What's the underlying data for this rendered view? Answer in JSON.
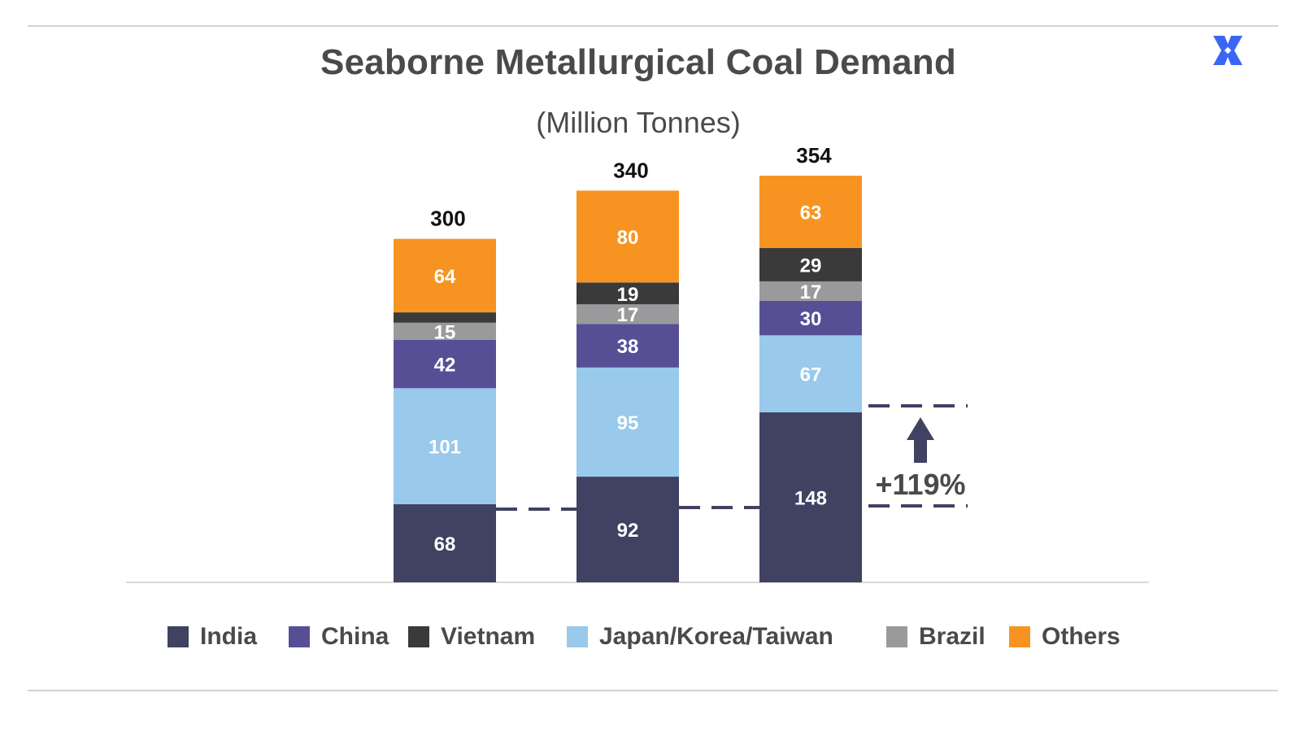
{
  "chart_data": {
    "type": "bar",
    "stacked": true,
    "title": "Seaborne Metallurgical Coal Demand",
    "subtitle": "(Million Tonnes)",
    "categories": [
      "",
      "",
      ""
    ],
    "series": [
      {
        "name": "India",
        "color": "#3f4261",
        "values": [
          68,
          92,
          148
        ]
      },
      {
        "name": "Japan/Korea/Taiwan",
        "color": "#99c9eb",
        "values": [
          101,
          95,
          67
        ]
      },
      {
        "name": "China",
        "color": "#574f96",
        "values": [
          42,
          38,
          30
        ]
      },
      {
        "name": "Brazil",
        "color": "#9a9a9c",
        "values": [
          15,
          17,
          17
        ]
      },
      {
        "name": "Vietnam",
        "color": "#3a3a3a",
        "values": [
          9,
          19,
          29
        ]
      },
      {
        "name": "Others",
        "color": "#f79421",
        "values": [
          64,
          80,
          63
        ]
      }
    ],
    "segment_labels": [
      [
        "68",
        "92",
        "148"
      ],
      [
        "101",
        "95",
        "67"
      ],
      [
        "42",
        "38",
        "30"
      ],
      [
        "15",
        "17",
        "17"
      ],
      [
        "",
        "19",
        "29"
      ],
      [
        "64",
        "80",
        "63"
      ]
    ],
    "totals": [
      "300",
      "340",
      "354"
    ],
    "ylim": [
      0,
      354
    ],
    "grid": false,
    "legend_position": "bottom",
    "legend_order": [
      "India",
      "China",
      "Vietnam",
      "Japan/Korea/Taiwan",
      "Brazil",
      "Others"
    ],
    "annotation": {
      "text": "+119%",
      "from_value": 68,
      "to_value": 148,
      "arrow": "up",
      "color": "#3f4261"
    }
  }
}
